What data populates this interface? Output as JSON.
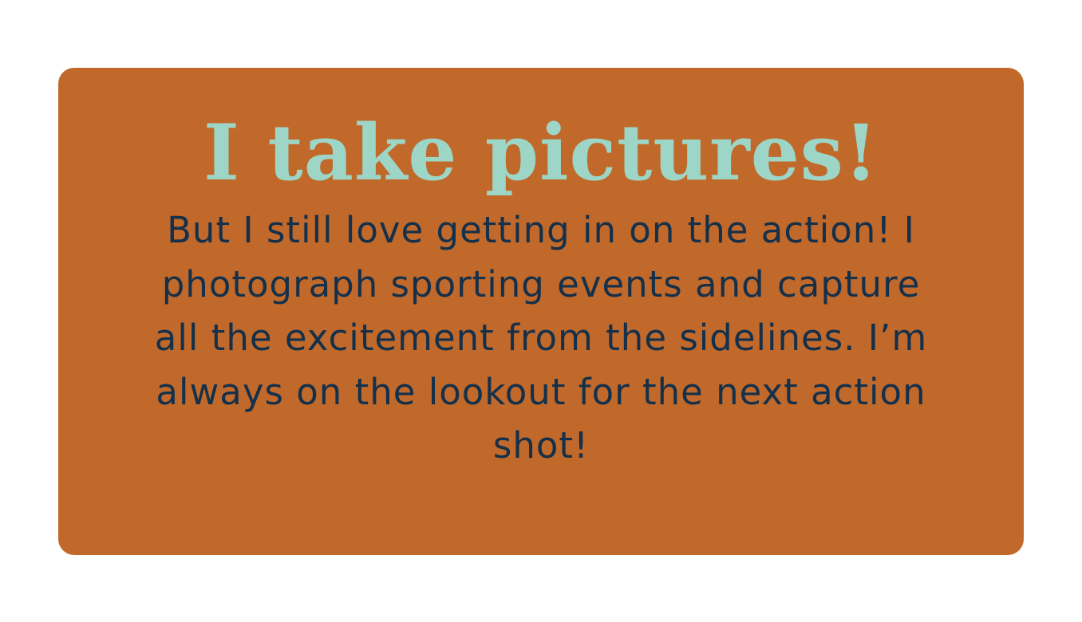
{
  "card": {
    "title": "I take pictures!",
    "body": "But I still love getting in on the action! I photograph sporting events and capture all the excitement from the sidelines. I’m always on the lookout for the next action shot!"
  },
  "colors": {
    "page_background": "#ffffff",
    "card_background": "#c1692b",
    "title_color": "#9dd6c6",
    "body_color": "#14304a"
  }
}
